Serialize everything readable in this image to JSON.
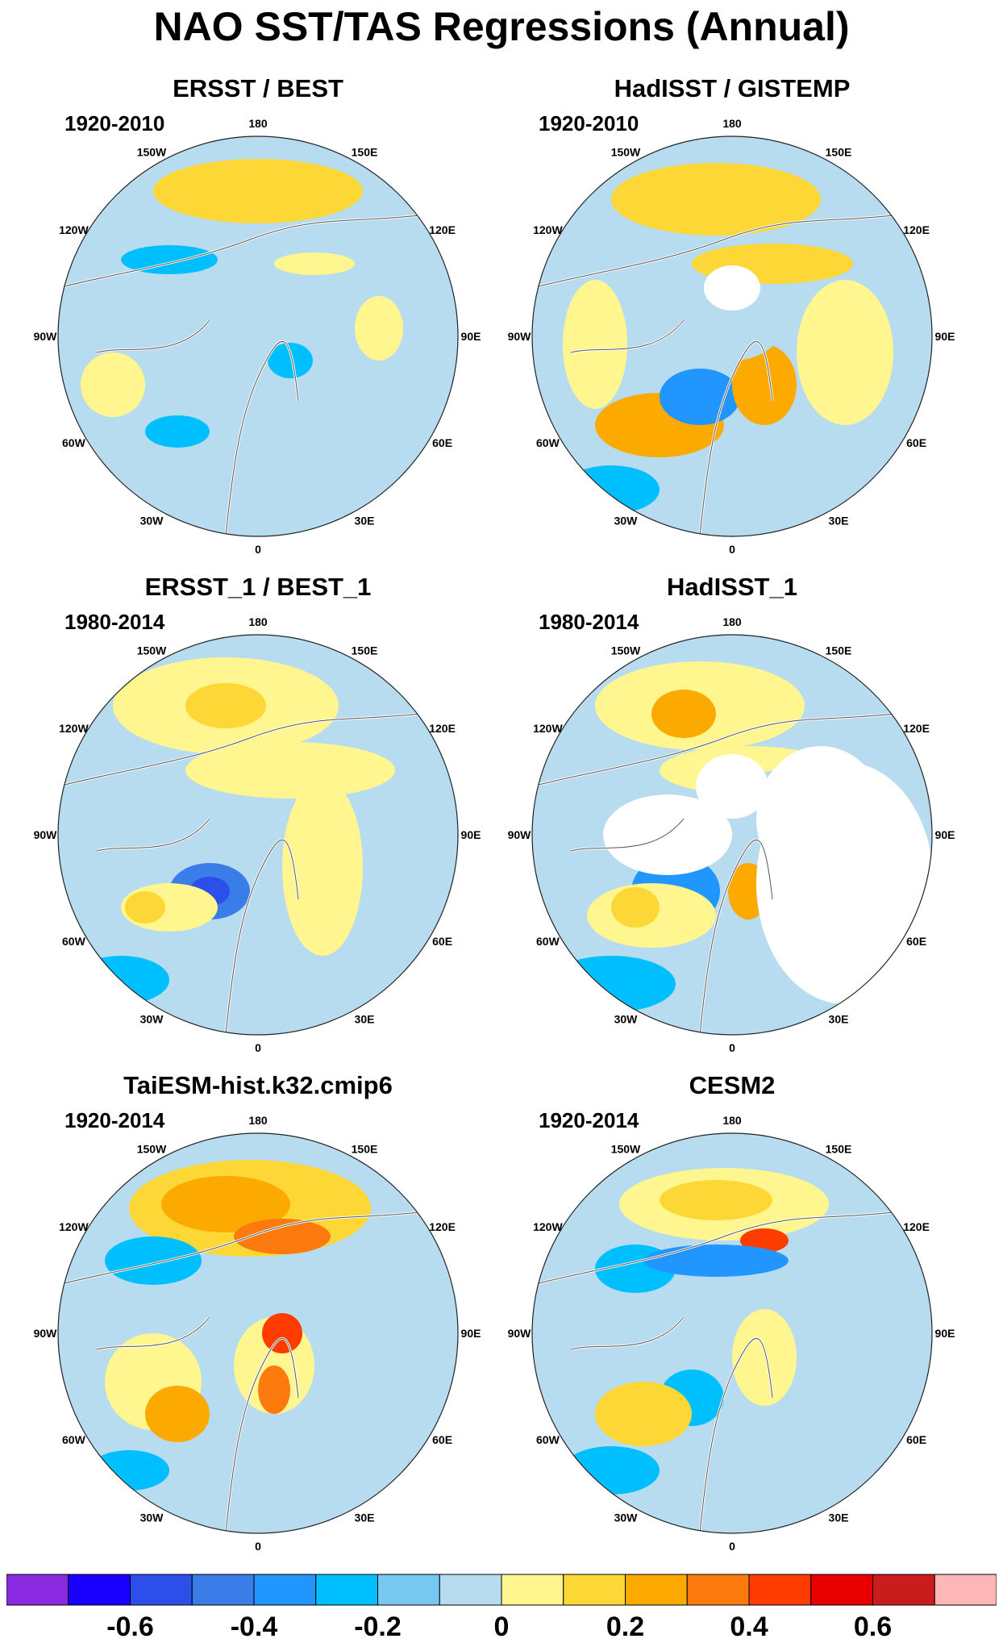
{
  "title": "NAO SST/TAS Regressions (Annual)",
  "panels": [
    {
      "title": "ERSST / BEST",
      "period": "1920-2010"
    },
    {
      "title": "HadISST / GISTEMP",
      "period": "1920-2010"
    },
    {
      "title": "ERSST_1 / BEST_1",
      "period": "1980-2014"
    },
    {
      "title": "HadISST_1",
      "period": "1980-2014"
    },
    {
      "title": "TaiESM-hist.k32.cmip6",
      "period": "1920-2014"
    },
    {
      "title": "CESM2",
      "period": "1920-2014"
    }
  ],
  "longitude_labels": [
    "180",
    "150E",
    "120E",
    "90E",
    "60E",
    "30E",
    "0",
    "30W",
    "60W",
    "90W",
    "120W",
    "150W"
  ],
  "colorbar": {
    "colors": [
      "#8a2be2",
      "#1a00ff",
      "#2b4fe8",
      "#3a7de8",
      "#2196ff",
      "#00bfff",
      "#77c8f0",
      "#b7dcf0",
      "#fff68f",
      "#fdd735",
      "#fdaa00",
      "#fd7b0e",
      "#ff3c00",
      "#e80000",
      "#c91c1c",
      "#ffb6b6"
    ],
    "tick_values": [
      -0.6,
      -0.4,
      -0.2,
      0,
      0.2,
      0.4,
      0.6
    ],
    "tick_labels": [
      "-0.6",
      "-0.4",
      "-0.2",
      "0",
      "0.2",
      "0.4",
      "0.6"
    ]
  }
}
